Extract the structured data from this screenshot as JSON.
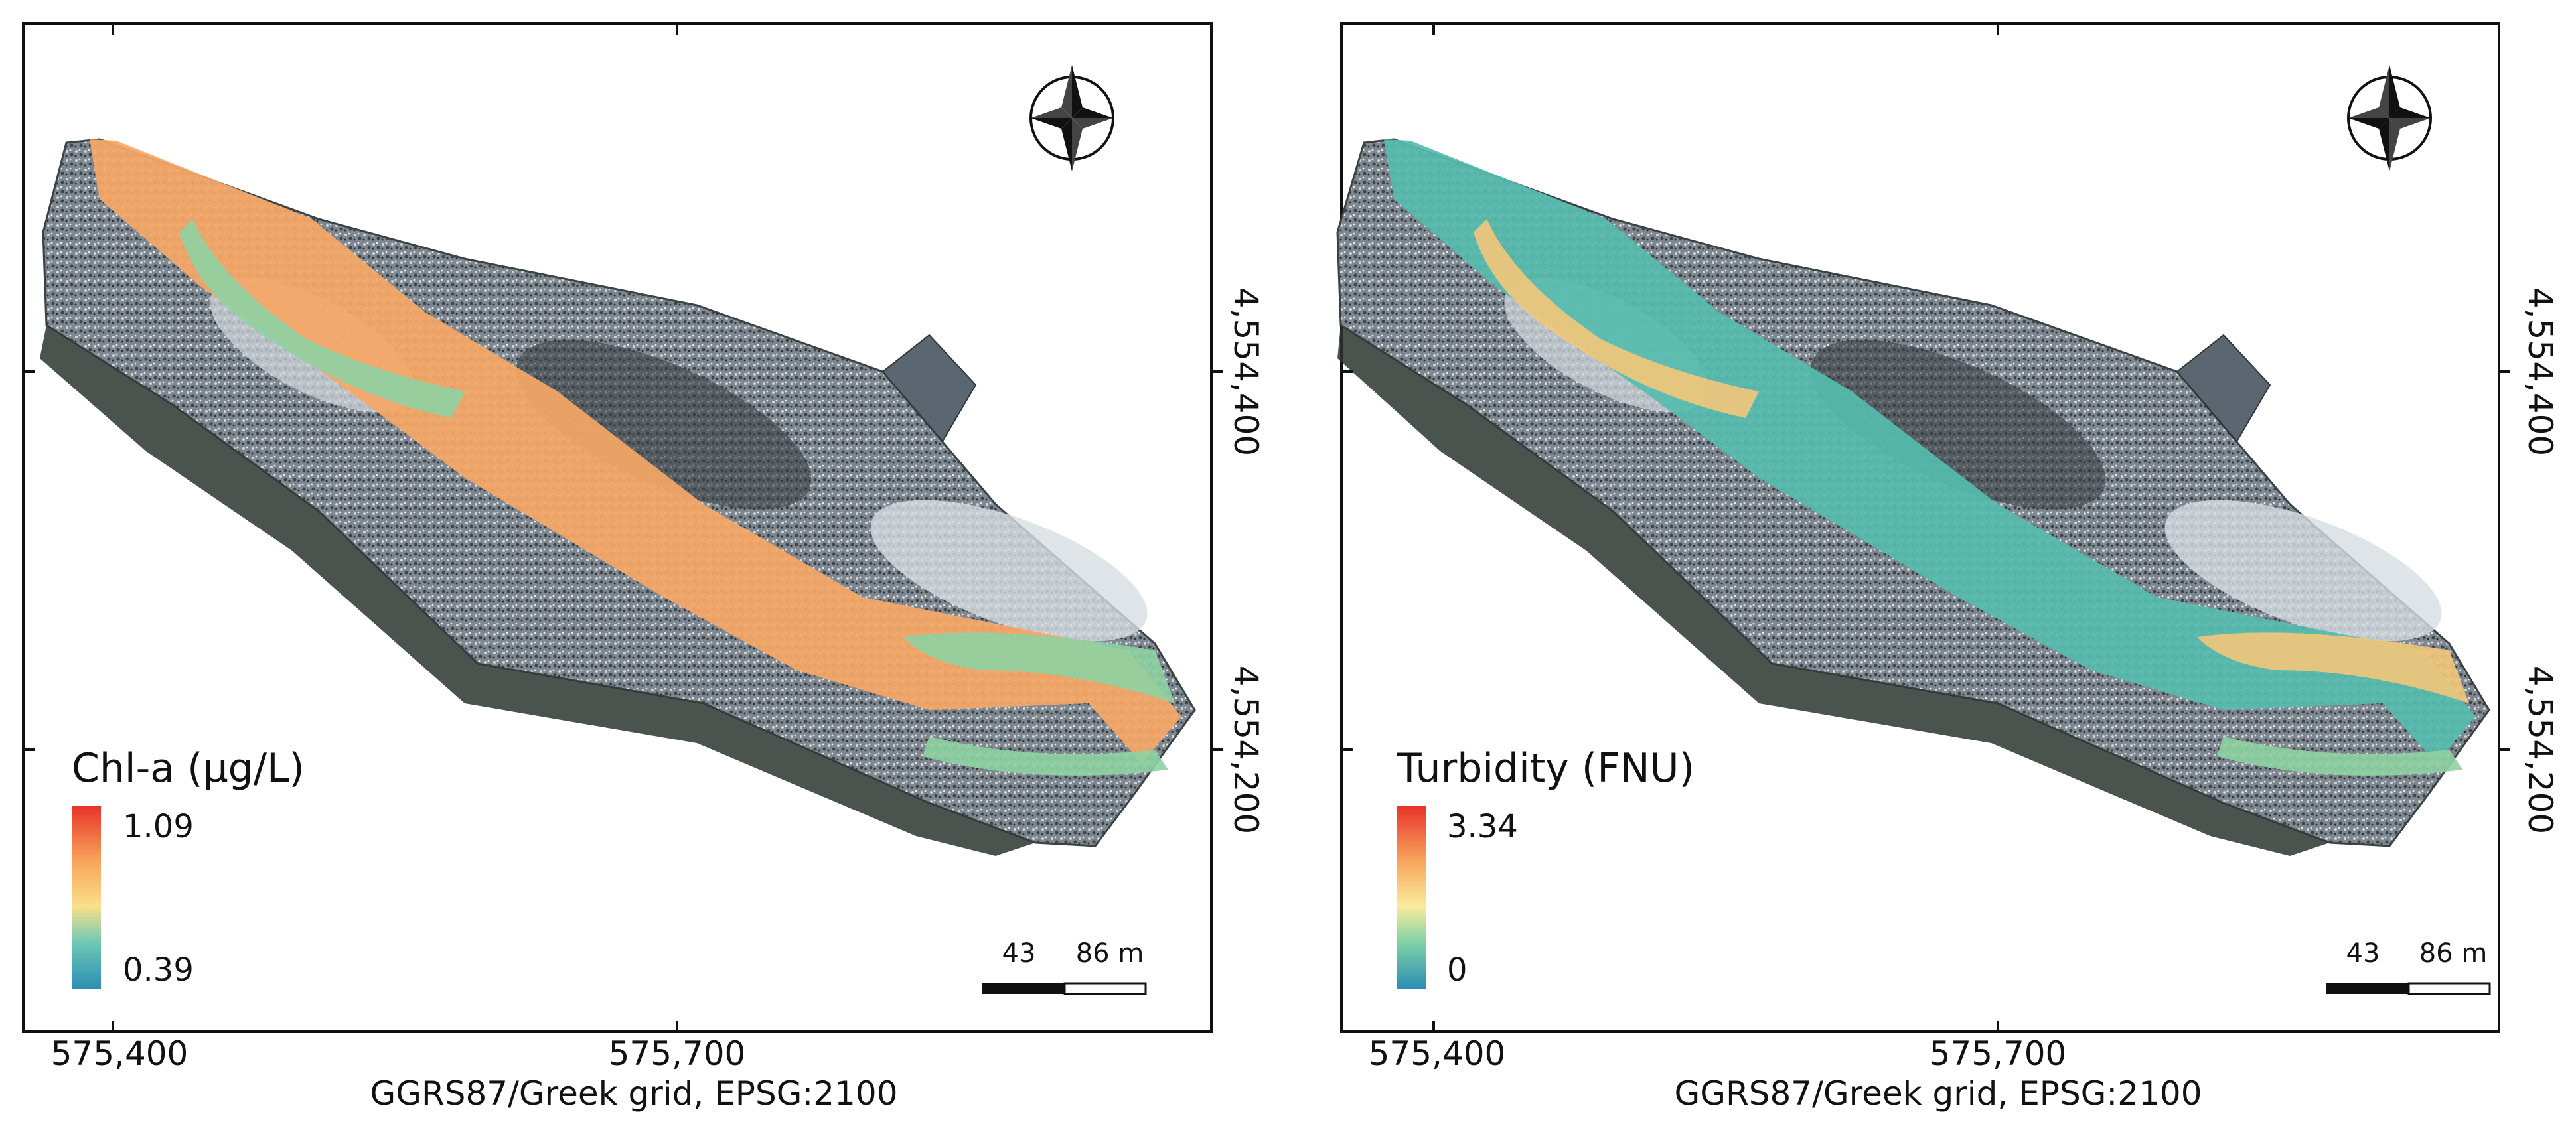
{
  "maps": [
    {
      "id": "chl",
      "legend": {
        "title": "Chl-a (µg/L)",
        "max_label": "1.09",
        "min_label": "0.39",
        "ramp": [
          "#2b8fb3",
          "#6cc7b5",
          "#fbe08a",
          "#f8a35a",
          "#e8342a"
        ]
      },
      "water_color": "#f6a766",
      "water_color_alt": "#8ed2a2",
      "x_ticks": [
        "575,400",
        "575,700"
      ],
      "y_ticks": [
        "4,554,400",
        "4,554,200"
      ],
      "scale_bar": {
        "mid_label": "43",
        "end_label": "86 m"
      },
      "crs": "GGRS87/Greek grid, EPSG:2100"
    },
    {
      "id": "turb",
      "legend": {
        "title": "Turbidity (FNU)",
        "max_label": "3.34",
        "min_label": "0",
        "ramp": [
          "#2b8fb3",
          "#7fd0a6",
          "#f9ec9c",
          "#f7a55c",
          "#e8342a"
        ]
      },
      "water_color": "#56bcae",
      "water_color_alt": "#f3c77a",
      "x_ticks": [
        "575,400",
        "575,700"
      ],
      "y_ticks": [
        "4,554,400",
        "4,554,200"
      ],
      "scale_bar": {
        "mid_label": "43",
        "end_label": "86 m"
      },
      "crs": "GGRS87/Greek grid, EPSG:2100"
    }
  ]
}
